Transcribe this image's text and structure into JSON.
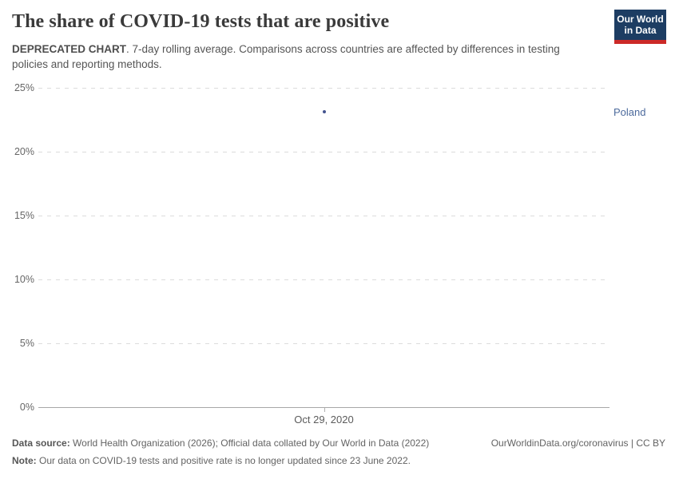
{
  "header": {
    "title": "The share of COVID-19 tests that are positive",
    "subtitle_bold": "DEPRECATED CHART",
    "subtitle_rest": ". 7-day rolling average. Comparisons across countries are affected by differences in testing policies and reporting methods.",
    "logo": {
      "line1": "Our World",
      "line2": "in Data",
      "bg_color": "#1d3d63",
      "accent_color": "#cc2a28"
    }
  },
  "chart_data": {
    "type": "scatter",
    "title": "The share of COVID-19 tests that are positive",
    "xlabel": "",
    "ylabel": "",
    "ylim": [
      0,
      25
    ],
    "yticks": [
      {
        "label": "0%",
        "value": 0
      },
      {
        "label": "5%",
        "value": 5
      },
      {
        "label": "10%",
        "value": 10
      },
      {
        "label": "15%",
        "value": 15
      },
      {
        "label": "20%",
        "value": 20
      },
      {
        "label": "25%",
        "value": 25
      }
    ],
    "x_tick_label": "Oct 29, 2020",
    "grid": "horizontal-dashed",
    "legend_position": "right-of-plot",
    "series": [
      {
        "name": "Poland",
        "label_color": "#4C6A9C",
        "dot_color": "#44548F",
        "points": [
          {
            "date": "Oct 29, 2020",
            "value": 23.1
          }
        ]
      }
    ]
  },
  "footer": {
    "datasource_label": "Data source:",
    "datasource_text": " World Health Organization (2026); Official data collated by Our World in Data (2022)",
    "link_text": "OurWorldinData.org/coronavirus | CC BY",
    "note_label": "Note:",
    "note_text": " Our data on COVID-19 tests and positive rate is no longer updated since 23 June 2022."
  }
}
